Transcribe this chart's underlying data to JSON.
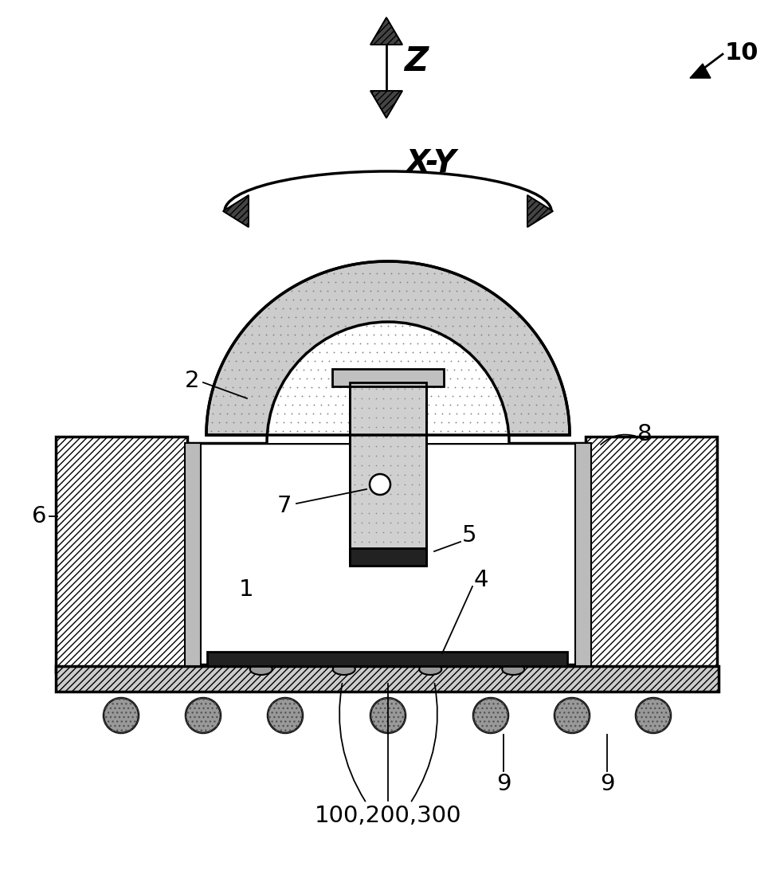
{
  "bg_color": "#ffffff",
  "fig_width": 9.7,
  "fig_height": 11.07,
  "labels": {
    "Z": "Z",
    "XY": "X-Y",
    "ref_10": "10",
    "label_2": "2",
    "label_6": "6",
    "label_8": "8",
    "label_7": "7",
    "label_1": "1",
    "label_5": "5",
    "label_4": "4",
    "label_9a": "9",
    "label_9b": "9",
    "label_100": "100,200,300"
  }
}
